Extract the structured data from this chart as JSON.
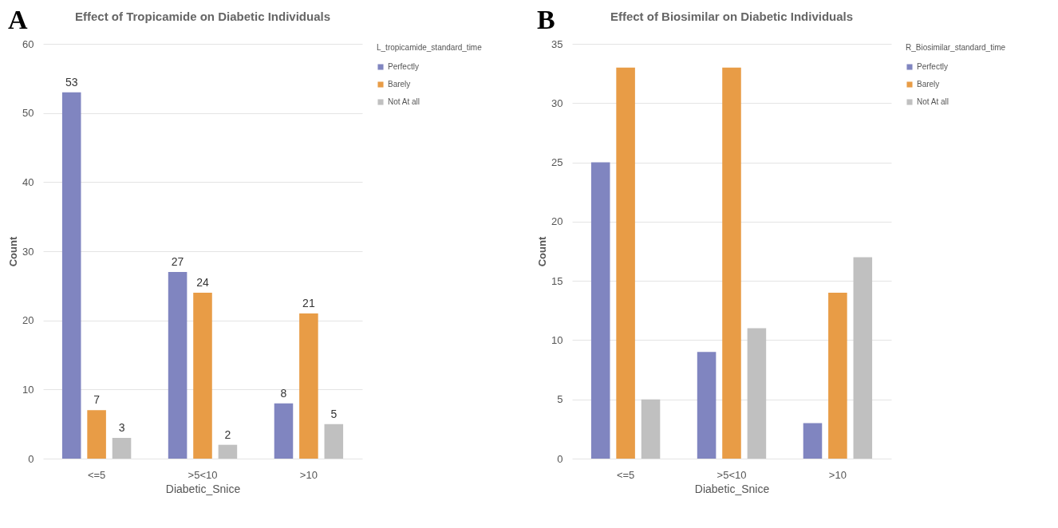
{
  "chart_data": [
    {
      "type": "bar",
      "title": "Effect of Tropicamide on Diabetic Individuals",
      "xlabel": "Diabetic_Snice",
      "ylabel": "Count",
      "legend_title": "L_tropicamide_standard_time",
      "annotations": [
        "A"
      ],
      "categories": [
        "<=5",
        ">5<10",
        ">10"
      ],
      "series": [
        {
          "name": "Perfectly",
          "color": "#8085c0",
          "values": [
            53,
            27,
            8
          ]
        },
        {
          "name": "Barely",
          "color": "#e89c46",
          "values": [
            7,
            24,
            21
          ]
        },
        {
          "name": "Not At all",
          "color": "#c0c0c0",
          "values": [
            3,
            2,
            5
          ]
        }
      ],
      "ylim": [
        0,
        60
      ],
      "yticks": [
        0,
        10,
        20,
        30,
        40,
        50,
        60
      ],
      "grid": "y",
      "legend": "right",
      "data_labels": true
    },
    {
      "type": "bar",
      "title": "Effect of Biosimilar on  Diabetic Individuals",
      "xlabel": "Diabetic_Snice",
      "ylabel": "Count",
      "legend_title": "R_Biosimilar_standard_time",
      "annotations": [
        "B"
      ],
      "categories": [
        "<=5",
        ">5<10",
        ">10"
      ],
      "series": [
        {
          "name": "Perfectly",
          "color": "#8085c0",
          "values": [
            25,
            9,
            3
          ]
        },
        {
          "name": "Barely",
          "color": "#e89c46",
          "values": [
            33,
            33,
            14
          ]
        },
        {
          "name": "Not At all",
          "color": "#c0c0c0",
          "values": [
            5,
            11,
            17
          ]
        }
      ],
      "ylim": [
        0,
        35
      ],
      "yticks": [
        0,
        5,
        10,
        15,
        20,
        25,
        30,
        35
      ],
      "grid": "y",
      "legend": "right"
    }
  ]
}
